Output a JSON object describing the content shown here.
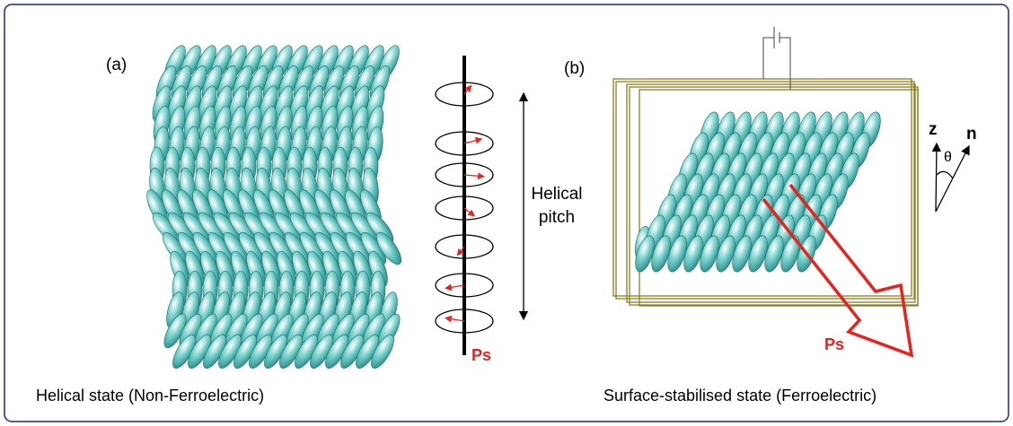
{
  "panel_a": {
    "label": "(a)",
    "pitch_label_1": "Helical",
    "pitch_label_2": "pitch",
    "ps_label": "Ps",
    "caption": "Helical state (Non-Ferroelectric)"
  },
  "panel_b": {
    "label": "(b)",
    "z_label": "z",
    "n_label": "n",
    "theta_label": "θ",
    "ps_label": "Ps",
    "caption": "Surface-stabilised state (Ferroelectric)"
  }
}
